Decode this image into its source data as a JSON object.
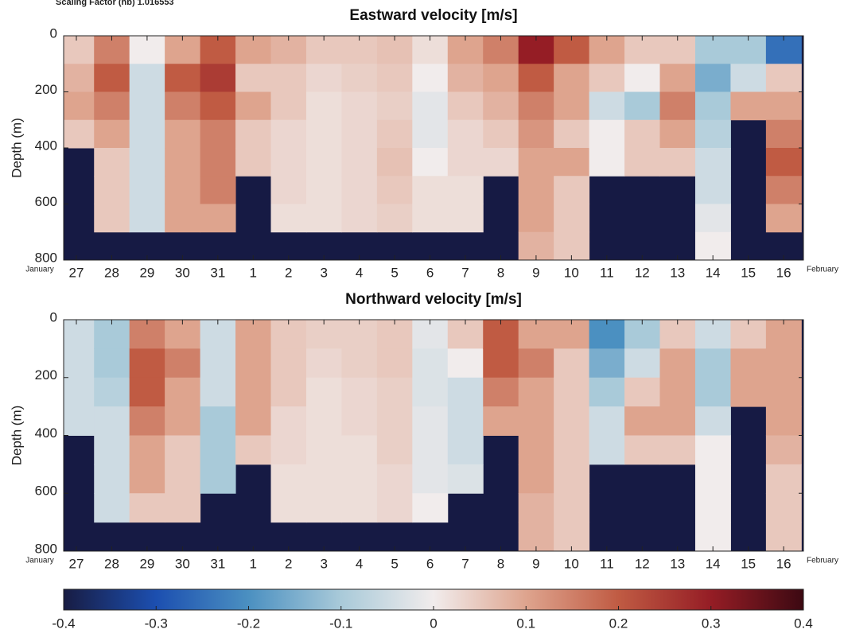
{
  "header": {
    "note": "Scaling Factor (hb) 1.016553"
  },
  "colorbar": {
    "lim": [
      -0.4,
      0.4
    ],
    "ticks": [
      -0.4,
      -0.3,
      -0.2,
      -0.1,
      0,
      0.1,
      0.2,
      0.3,
      0.4
    ],
    "colormap": [
      "#181c43",
      "#1c4fb0",
      "#4b90c1",
      "#a9cad9",
      "#f1ecec",
      "#dea48e",
      "#c05b43",
      "#951d25",
      "#3c0912"
    ],
    "missing_color": "#161a44"
  },
  "chart_data": [
    {
      "type": "heatmap",
      "title": "Eastward velocity [m/s]",
      "ylabel": "Depth (m)",
      "annotations": [
        "January",
        "February"
      ],
      "xlim": [
        26.64,
        47.56
      ],
      "xticks": [
        {
          "value": 27,
          "label": "27"
        },
        {
          "value": 28,
          "label": "28"
        },
        {
          "value": 29,
          "label": "29"
        },
        {
          "value": 30,
          "label": "30"
        },
        {
          "value": 31,
          "label": "31"
        },
        {
          "value": 32,
          "label": "1"
        },
        {
          "value": 33,
          "label": "2"
        },
        {
          "value": 34,
          "label": "3"
        },
        {
          "value": 35,
          "label": "4"
        },
        {
          "value": 36,
          "label": "5"
        },
        {
          "value": 37,
          "label": "6"
        },
        {
          "value": 38,
          "label": "7"
        },
        {
          "value": 39,
          "label": "8"
        },
        {
          "value": 40,
          "label": "9"
        },
        {
          "value": 41,
          "label": "10"
        },
        {
          "value": 42,
          "label": "11"
        },
        {
          "value": 43,
          "label": "12"
        },
        {
          "value": 44,
          "label": "13"
        },
        {
          "value": 45,
          "label": "14"
        },
        {
          "value": 46,
          "label": "15"
        },
        {
          "value": 47,
          "label": "16"
        }
      ],
      "ylim": [
        800,
        0
      ],
      "yticks": [
        0,
        200,
        400,
        600,
        800
      ],
      "x": [
        27,
        28,
        29,
        30,
        31,
        32,
        33,
        34,
        35,
        36,
        37,
        38,
        39,
        40,
        41,
        42,
        43,
        44,
        45,
        46,
        47
      ],
      "y": [
        50,
        150,
        250,
        350,
        450,
        550,
        650,
        750
      ],
      "values": [
        [
          0.05,
          0.08,
          0.1,
          0.05,
          null,
          null,
          null,
          null
        ],
        [
          0.15,
          0.2,
          0.15,
          0.1,
          0.05,
          0.05,
          0.05,
          null
        ],
        [
          0,
          -0.05,
          -0.05,
          -0.05,
          -0.05,
          -0.05,
          -0.05,
          null
        ],
        [
          0.1,
          0.2,
          0.15,
          0.1,
          0.1,
          0.1,
          0.1,
          null
        ],
        [
          0.2,
          0.25,
          0.2,
          0.15,
          0.15,
          0.15,
          0.1,
          null
        ],
        [
          0.1,
          0.05,
          0.1,
          0.05,
          0.05,
          null,
          null,
          null
        ],
        [
          0.08,
          0.05,
          0.05,
          0.03,
          0.03,
          0.03,
          0.02,
          null
        ],
        [
          0.05,
          0.03,
          0.02,
          0.02,
          0.02,
          0.02,
          0.02,
          null
        ],
        [
          0.05,
          0.04,
          0.03,
          0.03,
          0.03,
          0.03,
          0.03,
          null
        ],
        [
          0.06,
          0.05,
          0.04,
          0.05,
          0.06,
          0.05,
          0.04,
          null
        ],
        [
          0.02,
          0,
          -0.02,
          -0.02,
          0,
          0.02,
          0.02,
          null
        ],
        [
          0.1,
          0.08,
          0.05,
          0.03,
          0.03,
          0.02,
          0.02,
          null
        ],
        [
          0.15,
          0.1,
          0.08,
          0.05,
          0.03,
          null,
          null,
          null
        ],
        [
          0.3,
          0.2,
          0.15,
          0.12,
          0.1,
          0.1,
          0.1,
          0.08
        ],
        [
          0.2,
          0.1,
          0.1,
          0.05,
          0.1,
          0.05,
          0.05,
          0.05
        ],
        [
          0.1,
          0.05,
          -0.05,
          0,
          0,
          null,
          null,
          null
        ],
        [
          0.05,
          0,
          -0.1,
          0.05,
          0.05,
          null,
          null,
          null
        ],
        [
          0.05,
          0.1,
          0.15,
          0.1,
          0.05,
          null,
          null,
          null
        ],
        [
          -0.1,
          -0.15,
          -0.1,
          -0.08,
          -0.05,
          -0.05,
          -0.02,
          0
        ],
        [
          -0.1,
          -0.05,
          0.1,
          null,
          null,
          null,
          null,
          null
        ],
        [
          -0.25,
          0.05,
          0.1,
          0.15,
          0.2,
          0.15,
          0.1,
          null
        ]
      ]
    },
    {
      "type": "heatmap",
      "title": "Northward velocity [m/s]",
      "ylabel": "Depth (m)",
      "annotations": [
        "January",
        "February"
      ],
      "xlim": [
        26.64,
        47.56
      ],
      "xticks": [
        {
          "value": 27,
          "label": "27"
        },
        {
          "value": 28,
          "label": "28"
        },
        {
          "value": 29,
          "label": "29"
        },
        {
          "value": 30,
          "label": "30"
        },
        {
          "value": 31,
          "label": "31"
        },
        {
          "value": 32,
          "label": "1"
        },
        {
          "value": 33,
          "label": "2"
        },
        {
          "value": 34,
          "label": "3"
        },
        {
          "value": 35,
          "label": "4"
        },
        {
          "value": 36,
          "label": "5"
        },
        {
          "value": 37,
          "label": "6"
        },
        {
          "value": 38,
          "label": "7"
        },
        {
          "value": 39,
          "label": "8"
        },
        {
          "value": 40,
          "label": "9"
        },
        {
          "value": 41,
          "label": "10"
        },
        {
          "value": 42,
          "label": "11"
        },
        {
          "value": 43,
          "label": "12"
        },
        {
          "value": 44,
          "label": "13"
        },
        {
          "value": 45,
          "label": "14"
        },
        {
          "value": 46,
          "label": "15"
        },
        {
          "value": 47,
          "label": "16"
        }
      ],
      "ylim": [
        800,
        0
      ],
      "yticks": [
        0,
        200,
        400,
        600,
        800
      ],
      "x": [
        27,
        28,
        29,
        30,
        31,
        32,
        33,
        34,
        35,
        36,
        37,
        38,
        39,
        40,
        41,
        42,
        43,
        44,
        45,
        46,
        47
      ],
      "y": [
        50,
        150,
        250,
        350,
        450,
        550,
        650,
        750
      ],
      "values": [
        [
          -0.05,
          -0.05,
          -0.05,
          -0.05,
          null,
          null,
          null,
          null
        ],
        [
          -0.1,
          -0.1,
          -0.08,
          -0.05,
          -0.05,
          -0.05,
          -0.05,
          null
        ],
        [
          0.15,
          0.2,
          0.2,
          0.15,
          0.1,
          0.1,
          0.05,
          null
        ],
        [
          0.1,
          0.15,
          0.1,
          0.1,
          0.05,
          0.05,
          0.05,
          null
        ],
        [
          -0.05,
          -0.05,
          -0.05,
          -0.1,
          -0.1,
          -0.1,
          null,
          null
        ],
        [
          0.1,
          0.1,
          0.1,
          0.1,
          0.05,
          null,
          null,
          null
        ],
        [
          0.05,
          0.05,
          0.05,
          0.03,
          0.03,
          0.02,
          0.02,
          null
        ],
        [
          0.04,
          0.03,
          0.02,
          0.02,
          0.02,
          0.02,
          0.02,
          null
        ],
        [
          0.04,
          0.04,
          0.03,
          0.03,
          0.02,
          0.02,
          0.02,
          null
        ],
        [
          0.05,
          0.05,
          0.04,
          0.04,
          0.04,
          0.03,
          0.03,
          null
        ],
        [
          -0.02,
          -0.03,
          -0.03,
          -0.02,
          -0.02,
          -0.02,
          0,
          null
        ],
        [
          0.05,
          0,
          -0.05,
          -0.05,
          -0.05,
          -0.03,
          null,
          null
        ],
        [
          0.2,
          0.2,
          0.15,
          0.1,
          null,
          null,
          null,
          null
        ],
        [
          0.1,
          0.15,
          0.1,
          0.1,
          0.1,
          0.1,
          0.08,
          0.08
        ],
        [
          0.1,
          0.05,
          0.05,
          0.05,
          0.05,
          0.05,
          0.05,
          0.05
        ],
        [
          -0.2,
          -0.15,
          -0.1,
          -0.05,
          -0.05,
          null,
          null,
          null
        ],
        [
          -0.1,
          -0.05,
          0.05,
          0.1,
          0.05,
          null,
          null,
          null
        ],
        [
          0.05,
          0.1,
          0.1,
          0.1,
          0.05,
          null,
          null,
          null
        ],
        [
          -0.05,
          -0.1,
          -0.1,
          -0.05,
          0,
          0,
          0,
          0
        ],
        [
          0.05,
          0.1,
          0.1,
          null,
          null,
          null,
          null,
          null
        ],
        [
          0.1,
          0.1,
          0.1,
          0.1,
          0.08,
          0.05,
          0.05,
          0.05
        ]
      ]
    }
  ]
}
